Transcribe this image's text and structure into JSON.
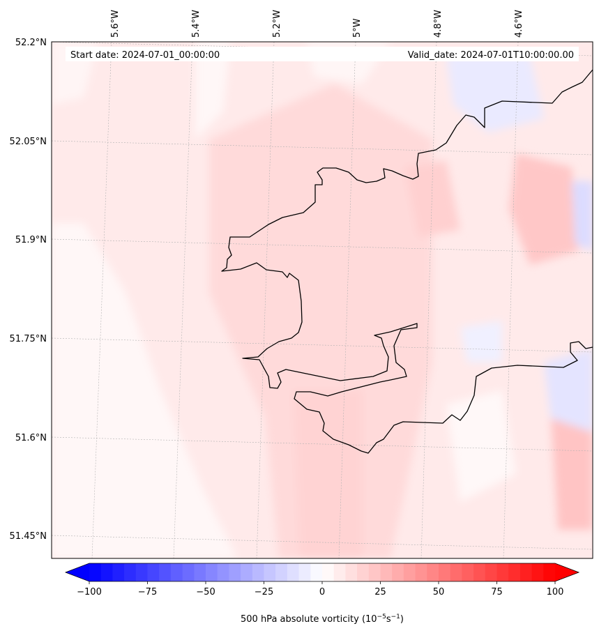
{
  "map": {
    "start_label": "Start date: 2024-07-01_00:00:00",
    "valid_label": "Valid_date: 2024-07-01T10:00:00.00",
    "lon_labels": [
      "5.6°W",
      "5.4°W",
      "5.2°W",
      "5°W",
      "4.8°W",
      "4.6°W"
    ],
    "lat_labels": [
      "52.2°N",
      "52.05°N",
      "51.9°N",
      "51.75°N",
      "51.6°N",
      "51.45°N"
    ],
    "grid_lines": "on",
    "coastline_color": "#000000"
  },
  "colorbar": {
    "ticks": [
      "−100",
      "−75",
      "−50",
      "−25",
      "0",
      "25",
      "50",
      "75",
      "100"
    ],
    "title_main": "500 hPa absolute vorticity (10",
    "title_exp1": "−5",
    "title_mid": "s",
    "title_exp2": "−1",
    "title_end": ")",
    "cmap": "bwr",
    "color_low": "#0000ff",
    "color_mid": "#ffffff",
    "color_high": "#ff0000",
    "range": [
      -100,
      100
    ]
  }
}
